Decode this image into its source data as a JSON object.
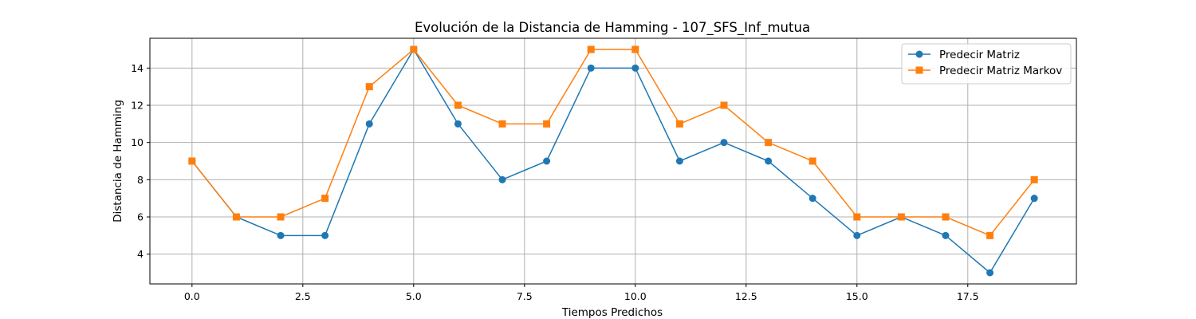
{
  "chart_data": {
    "type": "line",
    "title": "Evolución de la Distancia de Hamming - 107_SFS_Inf_mutua",
    "xlabel": "Tiempos Predichos",
    "ylabel": "Distancia de Hamming",
    "xlim": [
      -0.95,
      19.95
    ],
    "ylim": [
      2.4,
      15.6
    ],
    "xticks": [
      0.0,
      2.5,
      5.0,
      7.5,
      10.0,
      12.5,
      15.0,
      17.5
    ],
    "xtick_labels": [
      "0.0",
      "2.5",
      "5.0",
      "7.5",
      "10.0",
      "12.5",
      "15.0",
      "17.5"
    ],
    "yticks": [
      4,
      6,
      8,
      10,
      12,
      14
    ],
    "ytick_labels": [
      "4",
      "6",
      "8",
      "10",
      "12",
      "14"
    ],
    "grid": true,
    "legend_position": "top-right",
    "x": [
      0,
      1,
      2,
      3,
      4,
      5,
      6,
      7,
      8,
      9,
      10,
      11,
      12,
      13,
      14,
      15,
      16,
      17,
      18,
      19
    ],
    "series": [
      {
        "name": "Predecir Matriz",
        "color": "#1f77b4",
        "marker": "circle",
        "values": [
          9,
          6,
          5,
          5,
          11,
          15,
          11,
          8,
          9,
          14,
          14,
          9,
          10,
          9,
          7,
          5,
          6,
          5,
          3,
          7
        ]
      },
      {
        "name": "Predecir Matriz Markov",
        "color": "#ff7f0e",
        "marker": "square",
        "values": [
          9,
          6,
          6,
          7,
          13,
          15,
          12,
          11,
          11,
          15,
          15,
          11,
          12,
          10,
          9,
          6,
          6,
          6,
          5,
          8
        ]
      }
    ]
  }
}
